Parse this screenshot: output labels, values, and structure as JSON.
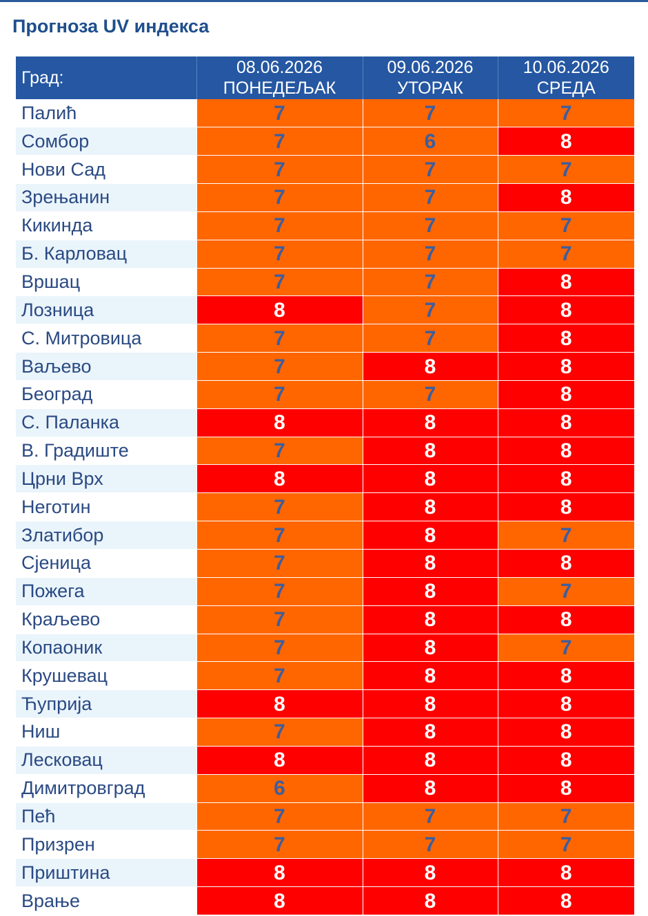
{
  "title": "Прогноза UV индекса",
  "table": {
    "city_header": "Град:",
    "days": [
      {
        "date": "08.06.2026",
        "weekday": "ПОНЕДЕЉАК"
      },
      {
        "date": "09.06.2026",
        "weekday": "УТОРАК"
      },
      {
        "date": "10.06.2026",
        "weekday": "СРЕДА"
      }
    ],
    "rows": [
      {
        "city": "Палић",
        "values": [
          7,
          7,
          7
        ]
      },
      {
        "city": "Сомбор",
        "values": [
          7,
          6,
          8
        ]
      },
      {
        "city": "Нови Сад",
        "values": [
          7,
          7,
          7
        ]
      },
      {
        "city": "Зрењанин",
        "values": [
          7,
          7,
          8
        ]
      },
      {
        "city": "Кикинда",
        "values": [
          7,
          7,
          7
        ]
      },
      {
        "city": "Б. Карловац",
        "values": [
          7,
          7,
          7
        ]
      },
      {
        "city": "Вршац",
        "values": [
          7,
          7,
          8
        ]
      },
      {
        "city": "Лозница",
        "values": [
          8,
          7,
          8
        ]
      },
      {
        "city": "С. Митровица",
        "values": [
          7,
          7,
          8
        ]
      },
      {
        "city": "Ваљево",
        "values": [
          7,
          8,
          8
        ]
      },
      {
        "city": "Београд",
        "values": [
          7,
          7,
          8
        ]
      },
      {
        "city": "С. Паланка",
        "values": [
          8,
          8,
          8
        ]
      },
      {
        "city": "В. Градиште",
        "values": [
          7,
          8,
          8
        ]
      },
      {
        "city": "Црни Врх",
        "values": [
          8,
          8,
          8
        ]
      },
      {
        "city": "Неготин",
        "values": [
          7,
          8,
          8
        ]
      },
      {
        "city": "Златибор",
        "values": [
          7,
          8,
          7
        ]
      },
      {
        "city": "Сјеница",
        "values": [
          7,
          8,
          8
        ]
      },
      {
        "city": "Пожега",
        "values": [
          7,
          8,
          7
        ]
      },
      {
        "city": "Краљево",
        "values": [
          7,
          8,
          8
        ]
      },
      {
        "city": "Копаоник",
        "values": [
          7,
          8,
          7
        ]
      },
      {
        "city": "Крушевац",
        "values": [
          7,
          8,
          8
        ]
      },
      {
        "city": "Ћуприја",
        "values": [
          8,
          8,
          8
        ]
      },
      {
        "city": "Ниш",
        "values": [
          7,
          8,
          8
        ]
      },
      {
        "city": "Лесковац",
        "values": [
          8,
          8,
          8
        ]
      },
      {
        "city": "Димитровград",
        "values": [
          6,
          8,
          8
        ]
      },
      {
        "city": "Пећ",
        "values": [
          7,
          7,
          7
        ]
      },
      {
        "city": "Призрен",
        "values": [
          7,
          7,
          7
        ]
      },
      {
        "city": "Приштина",
        "values": [
          8,
          8,
          8
        ]
      },
      {
        "city": "Врање",
        "values": [
          8,
          8,
          8
        ]
      }
    ]
  },
  "colors": {
    "header_bg": "#2557a2",
    "level_7_bg": "#ff6600",
    "level_8_bg": "#ff0000",
    "city_alt_bg": "#eaf4fb"
  }
}
